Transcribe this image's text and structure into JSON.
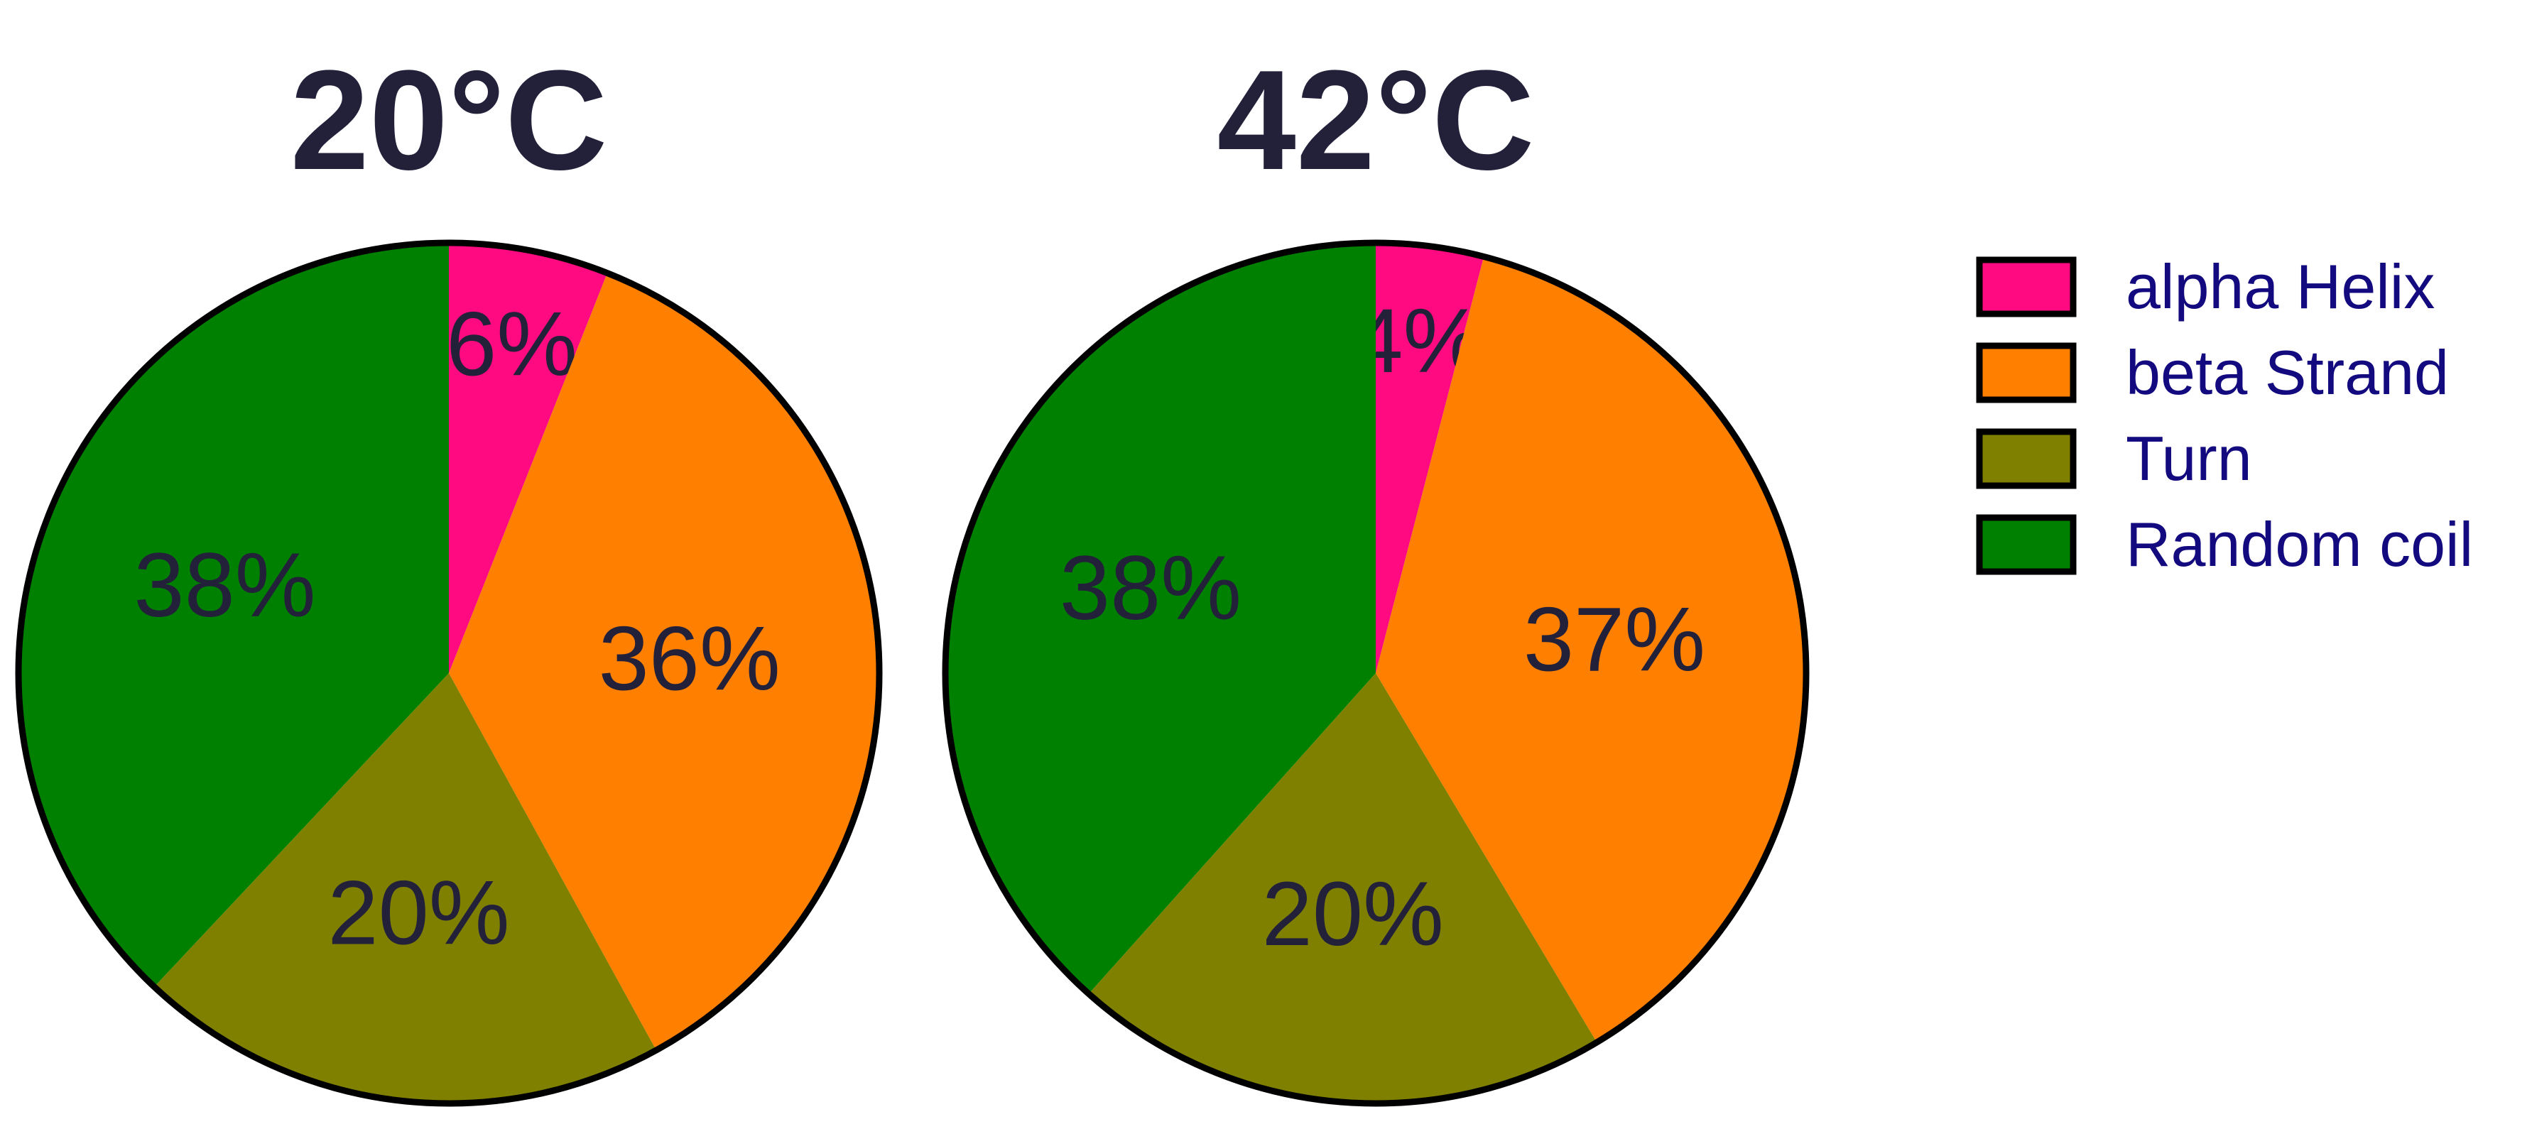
{
  "chart_data": {
    "type": "pie",
    "categories": [
      "alpha Helix",
      "beta Strand",
      "Turn",
      "Random coil"
    ],
    "colors": [
      "#ff0a80",
      "#ff8000",
      "#808000",
      "#008000"
    ],
    "pies": [
      {
        "title": "20°C",
        "values": [
          6,
          36,
          20,
          38
        ],
        "labels": [
          "6%",
          "36%",
          "20%",
          "38%"
        ]
      },
      {
        "title": "42°C",
        "values": [
          4,
          37,
          20,
          38
        ],
        "labels": [
          "4%",
          "37%",
          "20%",
          "38%"
        ]
      }
    ],
    "start_angle": "12 o'clock",
    "direction": "clockwise",
    "legend": {
      "position": "right",
      "entries": [
        "alpha Helix",
        "beta Strand",
        "Turn",
        "Random coil"
      ]
    }
  }
}
